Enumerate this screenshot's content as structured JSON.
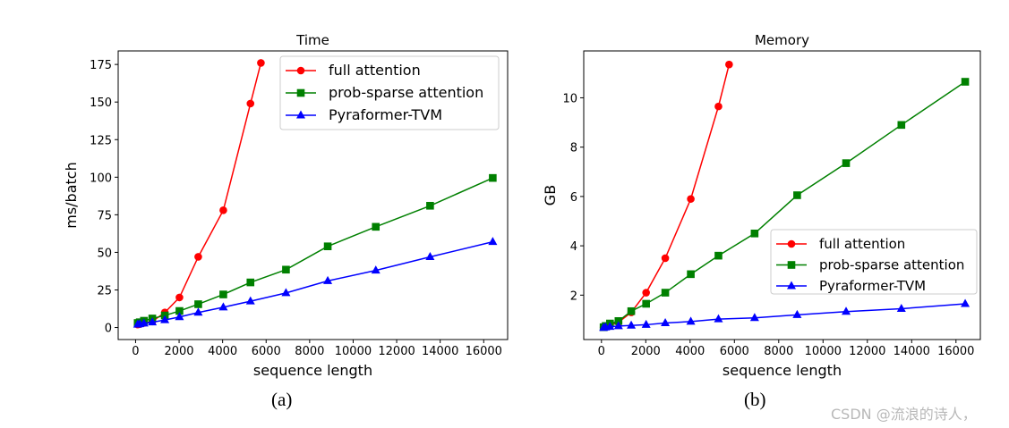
{
  "chart_data": [
    {
      "type": "line",
      "title": "Time",
      "xlabel": "sequence length",
      "ylabel": "ms/batch",
      "xlim": [
        -800,
        17100
      ],
      "ylim": [
        -8,
        184
      ],
      "xticks": [
        0,
        2000,
        4000,
        6000,
        8000,
        10000,
        12000,
        14000,
        16000
      ],
      "yticks": [
        0,
        25,
        50,
        75,
        100,
        125,
        150,
        175
      ],
      "legend": "top-right",
      "grid": false,
      "series": [
        {
          "name": "full attention",
          "color": "#ff0000",
          "marker": "circle",
          "x": [
            96,
            192,
            384,
            768,
            1344,
            2016,
            2880,
            4032,
            5280,
            5760
          ],
          "y": [
            2,
            2.3,
            3,
            4,
            10,
            20,
            47,
            78,
            149,
            176
          ]
        },
        {
          "name": "prob-sparse attention",
          "color": "#008000",
          "marker": "square",
          "x": [
            96,
            192,
            384,
            768,
            1344,
            2016,
            2880,
            4032,
            5280,
            6912,
            8832,
            11040,
            13536,
            16416
          ],
          "y": [
            3,
            3.5,
            4.5,
            6,
            8,
            11,
            15.5,
            22,
            30,
            38.5,
            54,
            67,
            81,
            99.5
          ]
        },
        {
          "name": "Pyraformer-TVM",
          "color": "#0000ff",
          "marker": "triangle",
          "x": [
            96,
            192,
            384,
            768,
            1344,
            2016,
            2880,
            4032,
            5280,
            6912,
            8832,
            11040,
            13536,
            16416
          ],
          "y": [
            2,
            2.3,
            2.8,
            3.5,
            5,
            7,
            10,
            13.5,
            17.5,
            23,
            31,
            38,
            47,
            57
          ]
        }
      ]
    },
    {
      "type": "line",
      "title": "Memory",
      "xlabel": "sequence length",
      "ylabel": "GB",
      "xlim": [
        -800,
        17100
      ],
      "ylim": [
        0.2,
        11.9
      ],
      "xticks": [
        0,
        2000,
        4000,
        6000,
        8000,
        10000,
        12000,
        14000,
        16000
      ],
      "yticks": [
        2,
        4,
        6,
        8,
        10
      ],
      "legend": "lower-right",
      "grid": false,
      "series": [
        {
          "name": "full attention",
          "color": "#ff0000",
          "marker": "circle",
          "x": [
            96,
            192,
            384,
            768,
            1344,
            2016,
            2880,
            4032,
            5280,
            5760
          ],
          "y": [
            0.7,
            0.72,
            0.78,
            0.9,
            1.3,
            2.1,
            3.5,
            5.9,
            9.65,
            11.35
          ]
        },
        {
          "name": "prob-sparse attention",
          "color": "#008000",
          "marker": "square",
          "x": [
            96,
            192,
            384,
            768,
            1344,
            2016,
            2880,
            4032,
            5280,
            6912,
            8832,
            11040,
            13536,
            16416
          ],
          "y": [
            0.7,
            0.75,
            0.85,
            0.95,
            1.35,
            1.65,
            2.1,
            2.85,
            3.6,
            4.5,
            6.05,
            7.35,
            8.9,
            10.65
          ]
        },
        {
          "name": "Pyraformer-TVM",
          "color": "#0000ff",
          "marker": "triangle",
          "x": [
            96,
            192,
            384,
            768,
            1344,
            2016,
            2880,
            4032,
            5280,
            6912,
            8832,
            11040,
            13536,
            16416
          ],
          "y": [
            0.68,
            0.7,
            0.72,
            0.75,
            0.77,
            0.8,
            0.87,
            0.93,
            1.03,
            1.08,
            1.2,
            1.33,
            1.45,
            1.65
          ]
        }
      ]
    }
  ],
  "captions": [
    "(a)",
    "(b)"
  ],
  "watermark": "CSDN @流浪的诗人，"
}
